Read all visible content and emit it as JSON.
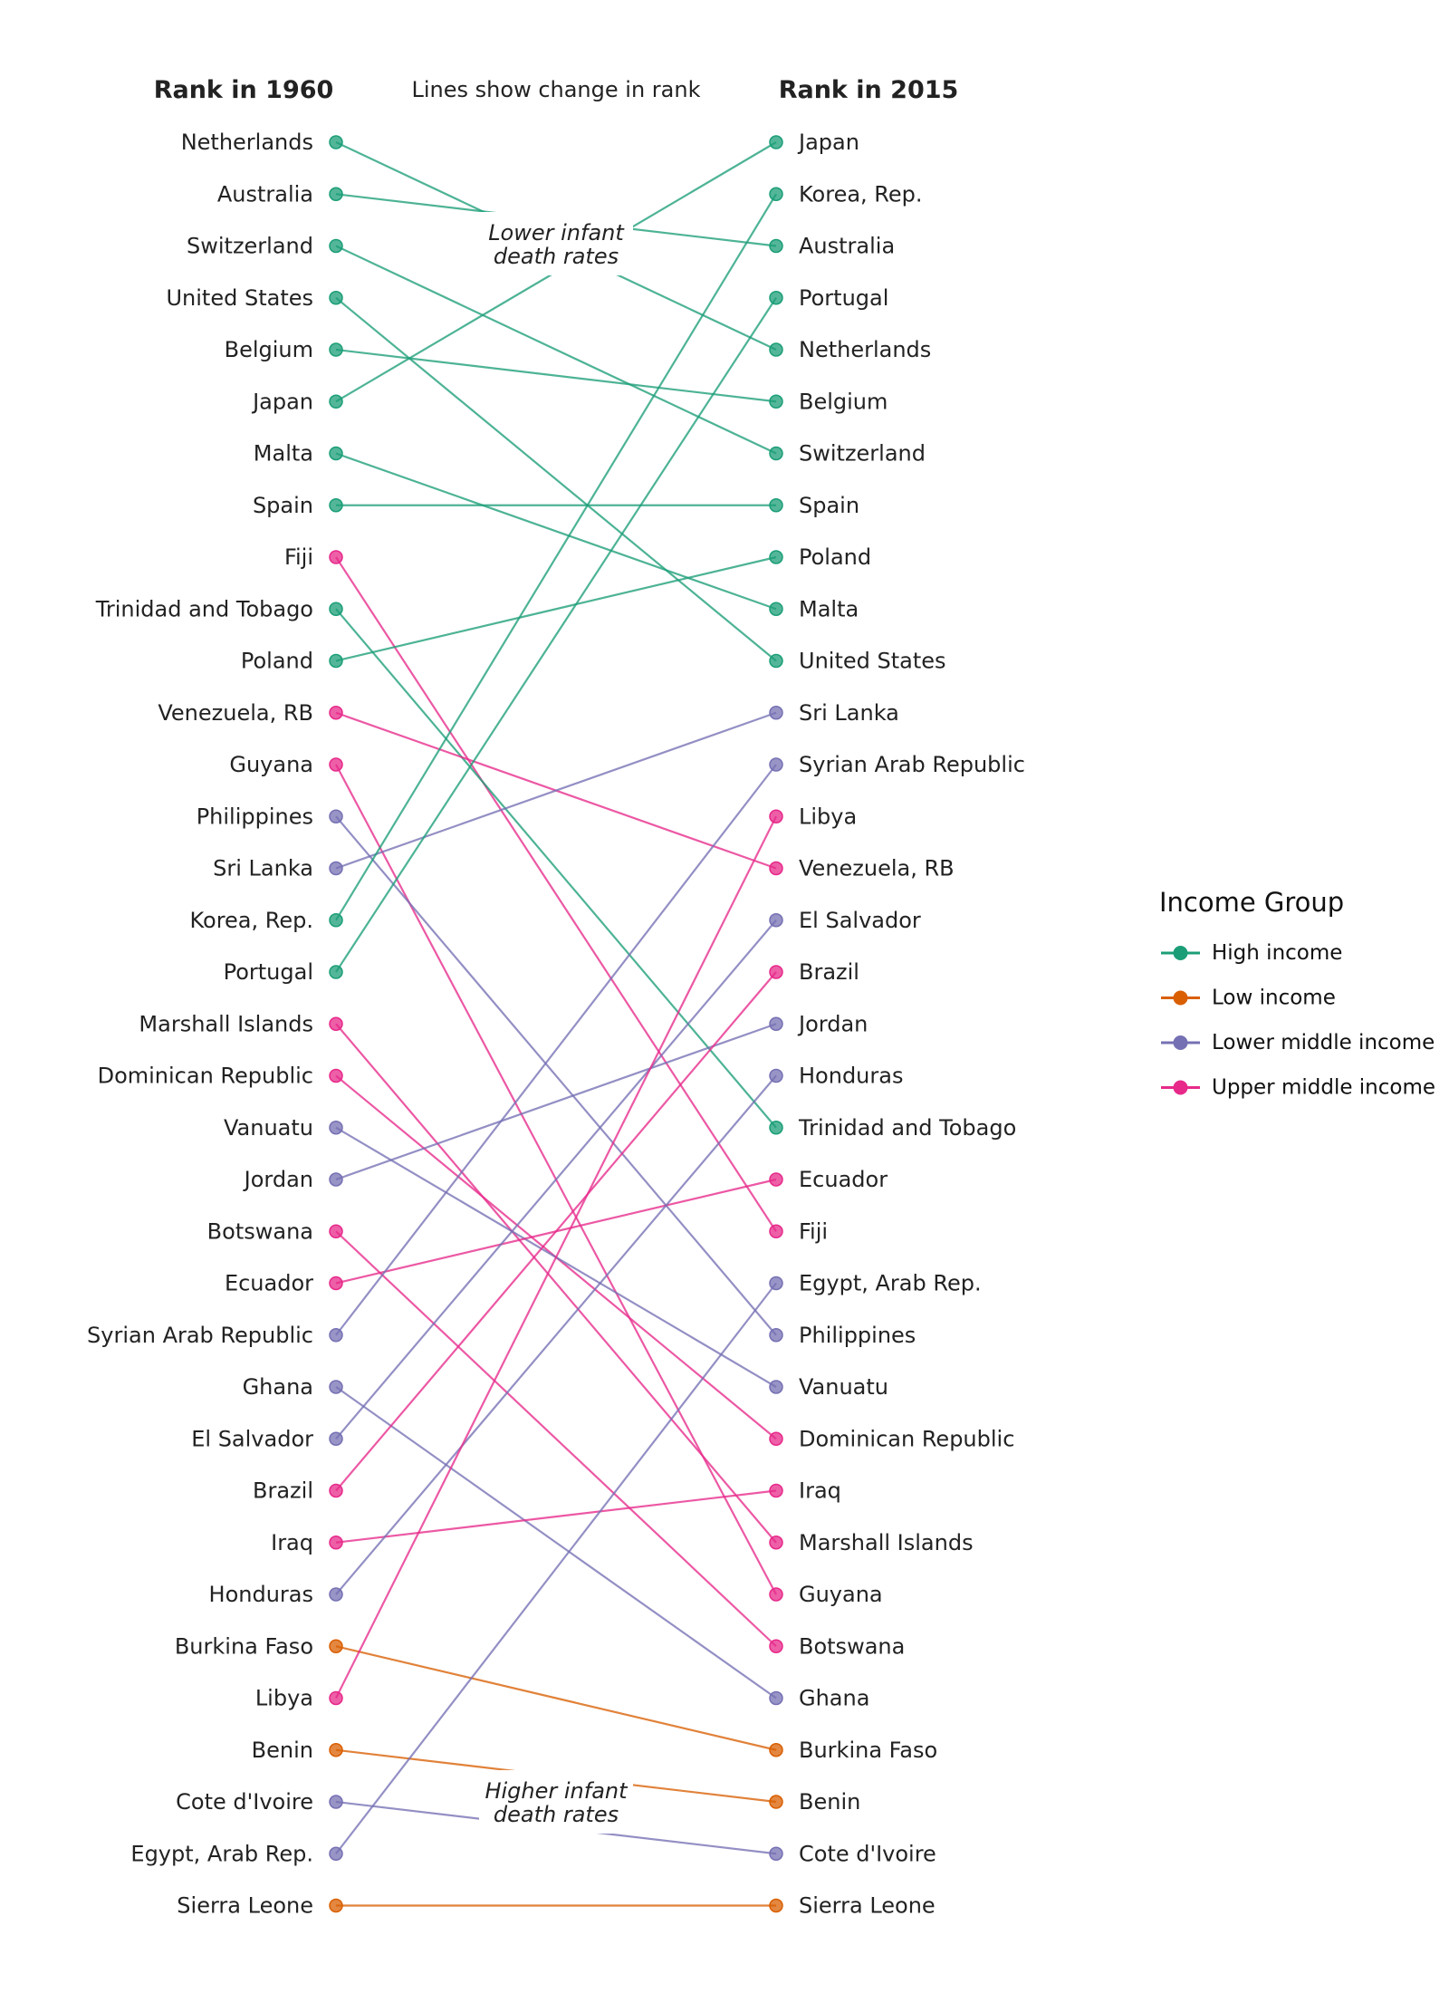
{
  "chart_data": {
    "type": "slope",
    "left_header": "Rank in 1960",
    "right_header": "Rank in 2015",
    "subtitle": "Lines show change in rank",
    "annotation_top": [
      "Lower infant",
      "death rates"
    ],
    "annotation_bottom": [
      "Higher infant",
      "death rates"
    ],
    "legend_title": "Income Group",
    "groups": [
      {
        "name": "High income",
        "color": "#1b9e77"
      },
      {
        "name": "Low income",
        "color": "#d95f02"
      },
      {
        "name": "Lower middle income",
        "color": "#7570b3"
      },
      {
        "name": "Upper middle income",
        "color": "#e7298a"
      }
    ],
    "countries": [
      {
        "name": "Netherlands",
        "group": "High income",
        "rank_1960": 1,
        "rank_2015": 5
      },
      {
        "name": "Australia",
        "group": "High income",
        "rank_1960": 2,
        "rank_2015": 3
      },
      {
        "name": "Switzerland",
        "group": "High income",
        "rank_1960": 3,
        "rank_2015": 7
      },
      {
        "name": "United States",
        "group": "High income",
        "rank_1960": 4,
        "rank_2015": 11
      },
      {
        "name": "Belgium",
        "group": "High income",
        "rank_1960": 5,
        "rank_2015": 6
      },
      {
        "name": "Japan",
        "group": "High income",
        "rank_1960": 6,
        "rank_2015": 1
      },
      {
        "name": "Malta",
        "group": "High income",
        "rank_1960": 7,
        "rank_2015": 10
      },
      {
        "name": "Spain",
        "group": "High income",
        "rank_1960": 8,
        "rank_2015": 8
      },
      {
        "name": "Fiji",
        "group": "Upper middle income",
        "rank_1960": 9,
        "rank_2015": 22
      },
      {
        "name": "Trinidad and Tobago",
        "group": "High income",
        "rank_1960": 10,
        "rank_2015": 20
      },
      {
        "name": "Poland",
        "group": "High income",
        "rank_1960": 11,
        "rank_2015": 9
      },
      {
        "name": "Venezuela, RB",
        "group": "Upper middle income",
        "rank_1960": 12,
        "rank_2015": 15
      },
      {
        "name": "Guyana",
        "group": "Upper middle income",
        "rank_1960": 13,
        "rank_2015": 29
      },
      {
        "name": "Philippines",
        "group": "Lower middle income",
        "rank_1960": 14,
        "rank_2015": 24
      },
      {
        "name": "Sri Lanka",
        "group": "Lower middle income",
        "rank_1960": 15,
        "rank_2015": 12
      },
      {
        "name": "Korea, Rep.",
        "group": "High income",
        "rank_1960": 16,
        "rank_2015": 2
      },
      {
        "name": "Portugal",
        "group": "High income",
        "rank_1960": 17,
        "rank_2015": 4
      },
      {
        "name": "Marshall Islands",
        "group": "Upper middle income",
        "rank_1960": 18,
        "rank_2015": 28
      },
      {
        "name": "Dominican Republic",
        "group": "Upper middle income",
        "rank_1960": 19,
        "rank_2015": 26
      },
      {
        "name": "Vanuatu",
        "group": "Lower middle income",
        "rank_1960": 20,
        "rank_2015": 25
      },
      {
        "name": "Jordan",
        "group": "Lower middle income",
        "rank_1960": 21,
        "rank_2015": 18
      },
      {
        "name": "Botswana",
        "group": "Upper middle income",
        "rank_1960": 22,
        "rank_2015": 30
      },
      {
        "name": "Ecuador",
        "group": "Upper middle income",
        "rank_1960": 23,
        "rank_2015": 21
      },
      {
        "name": "Syrian Arab Republic",
        "group": "Lower middle income",
        "rank_1960": 24,
        "rank_2015": 13
      },
      {
        "name": "Ghana",
        "group": "Lower middle income",
        "rank_1960": 25,
        "rank_2015": 31
      },
      {
        "name": "El Salvador",
        "group": "Lower middle income",
        "rank_1960": 26,
        "rank_2015": 16
      },
      {
        "name": "Brazil",
        "group": "Upper middle income",
        "rank_1960": 27,
        "rank_2015": 17
      },
      {
        "name": "Iraq",
        "group": "Upper middle income",
        "rank_1960": 28,
        "rank_2015": 27
      },
      {
        "name": "Honduras",
        "group": "Lower middle income",
        "rank_1960": 29,
        "rank_2015": 19
      },
      {
        "name": "Burkina Faso",
        "group": "Low income",
        "rank_1960": 30,
        "rank_2015": 32
      },
      {
        "name": "Libya",
        "group": "Upper middle income",
        "rank_1960": 31,
        "rank_2015": 14
      },
      {
        "name": "Benin",
        "group": "Low income",
        "rank_1960": 32,
        "rank_2015": 33
      },
      {
        "name": "Cote d'Ivoire",
        "group": "Lower middle income",
        "rank_1960": 33,
        "rank_2015": 34
      },
      {
        "name": "Egypt, Arab Rep.",
        "group": "Lower middle income",
        "rank_1960": 34,
        "rank_2015": 23
      },
      {
        "name": "Sierra Leone",
        "group": "Low income",
        "rank_1960": 35,
        "rank_2015": 35
      }
    ]
  }
}
